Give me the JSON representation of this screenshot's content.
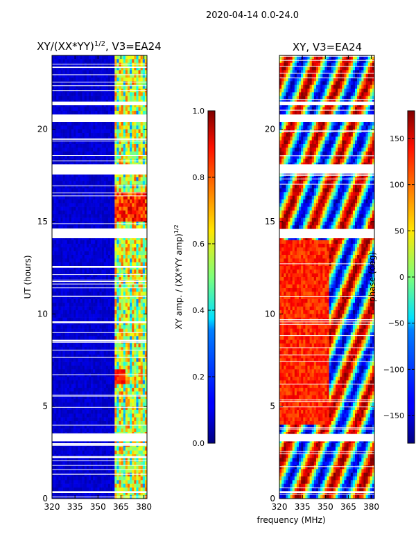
{
  "figure": {
    "suptitle": "2020-04-14 0.0-24.0",
    "xlabel_shared": "frequency (MHz)"
  },
  "chart_data": [
    {
      "type": "heatmap",
      "title_main": "XY/(XX*YY)",
      "title_exp": "1/2",
      "title_rest": ", V3=EA24",
      "xlabel": "frequency (MHz)",
      "ylabel": "UT (hours)",
      "xlim": [
        320,
        382
      ],
      "ylim": [
        0,
        24
      ],
      "xticks": [
        320,
        335,
        350,
        365,
        380
      ],
      "yticks": [
        0,
        5,
        10,
        15,
        20
      ],
      "colorbar": {
        "label_main": "XY amp. / (XX*YY amp)",
        "label_exp": "1/2",
        "range": [
          0.0,
          1.0
        ],
        "ticks": [
          "0.0",
          "0.2",
          "0.4",
          "0.6",
          "0.8",
          "1.0"
        ],
        "colormap": "jet"
      },
      "gaps_hours": [
        [
          21.3,
          21.5
        ],
        [
          20.4,
          20.8
        ],
        [
          18.1,
          17.6
        ],
        [
          17.55,
          17.7
        ],
        [
          14.6,
          14.1
        ],
        [
          12.5,
          12.6
        ],
        [
          9.5,
          9.6
        ],
        [
          8.5,
          8.6
        ],
        [
          3.5,
          3.1
        ],
        [
          3.0,
          2.9
        ],
        [
          2.2,
          2.3
        ],
        [
          1.3,
          1.35
        ],
        [
          0.3,
          0.4
        ]
      ],
      "note": "low amplitude (~0.05) below 361 MHz; higher amplitude bands (0.3-0.9) at 361-382 MHz, peaking ~0.9 around 15-16.5 UT"
    },
    {
      "type": "heatmap",
      "title": "XY, V3=EA24",
      "xlabel": "frequency (MHz)",
      "ylabel": "",
      "xlim": [
        320,
        382
      ],
      "ylim": [
        0,
        24
      ],
      "xticks": [
        320,
        335,
        350,
        365,
        380
      ],
      "yticks": [
        0,
        5,
        10,
        15,
        20
      ],
      "colorbar": {
        "label": "phase (deg)",
        "range": [
          -180,
          180
        ],
        "ticks": [
          "150",
          "100",
          "50",
          "0",
          "−50",
          "−100",
          "−150"
        ],
        "colormap": "jet"
      },
      "gaps_hours": [
        [
          21.3,
          21.5
        ],
        [
          20.4,
          20.8
        ],
        [
          18.1,
          17.6
        ],
        [
          14.6,
          14.1
        ],
        [
          3.5,
          3.1
        ],
        [
          0.3,
          0.4
        ]
      ],
      "note": "phase wraps across full range; predominantly ~100-150 deg (orange) from 4-14 UT at 320-350 MHz, mixed elsewhere"
    }
  ]
}
